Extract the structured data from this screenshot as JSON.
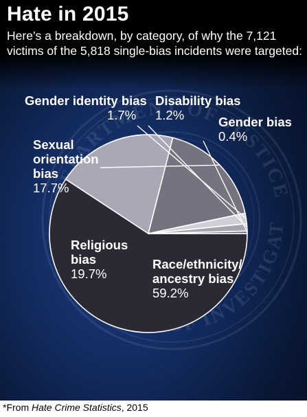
{
  "header": {
    "title": "Hate in 2015",
    "subtitle": "Here’s a breakdown, by category, of why the 7,121 victims of the 5,818 single-bias incidents were targeted:"
  },
  "footer": {
    "prefix": "*From ",
    "source": "Hate Crime Statistics",
    "suffix": ", 2015"
  },
  "seal_text": "DEPARTMENT OF JUSTICE · FEDERAL BUREAU OF INVESTIGATION",
  "colors": {
    "race": "#2b2a34",
    "religious": "#a9a8b6",
    "sexual": "#74737f",
    "gender_identity": "#cfcfd8",
    "disability": "#a5a4b2",
    "gender": "#6d6c78",
    "slice_stroke": "#ffffff",
    "panel": "#0f2352"
  },
  "chart_data": {
    "type": "pie",
    "title": "Hate in 2015",
    "slices": [
      {
        "label": "Race/ethnicity/ ancestry bias",
        "value": 59.2,
        "display": "59.2%"
      },
      {
        "label": "Religious bias",
        "value": 19.7,
        "display": "19.7%"
      },
      {
        "label": "Sexual orientation bias",
        "value": 17.7,
        "display": "17.7%"
      },
      {
        "label": "Gender identity bias",
        "value": 1.7,
        "display": "1.7%"
      },
      {
        "label": "Disability bias",
        "value": 1.2,
        "display": "1.2%"
      },
      {
        "label": "Gender bias",
        "value": 0.4,
        "display": "0.4%"
      }
    ],
    "labels": {
      "race": {
        "name": "Race/ethnicity/ ancestry bias",
        "pct": "59.2%"
      },
      "religious": {
        "name": "Religious bias",
        "pct": "19.7%"
      },
      "sexual": {
        "name": "Sexual orientation bias",
        "pct": "17.7%"
      },
      "gender_identity": {
        "name": "Gender identity bias",
        "pct": "1.7%"
      },
      "disability": {
        "name": "Disability bias",
        "pct": "1.2%"
      },
      "gender": {
        "name": "Gender bias",
        "pct": "0.4%"
      }
    }
  }
}
